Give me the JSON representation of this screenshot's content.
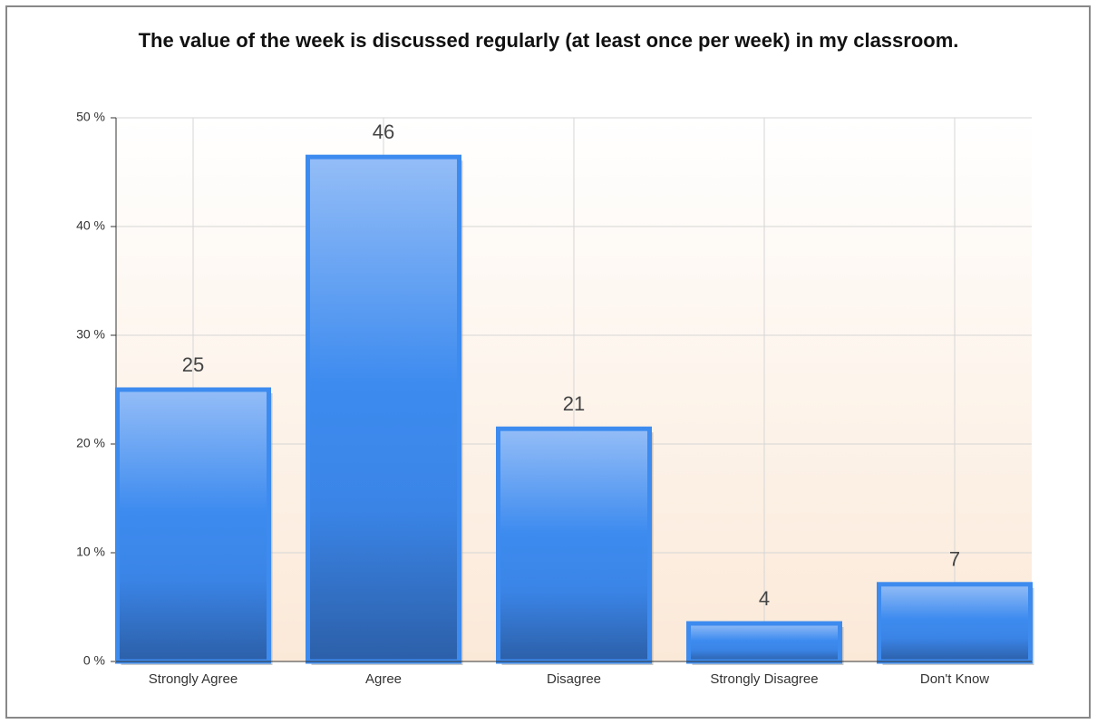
{
  "chart_data": {
    "type": "bar",
    "title": "The value of the week is discussed regularly (at least once per week) in my classroom.",
    "categories": [
      "Strongly Agree",
      "Agree",
      "Disagree",
      "Strongly Disagree",
      "Don't Know"
    ],
    "values": [
      25,
      46.4,
      21.4,
      3.5,
      7.1
    ],
    "value_labels": [
      "25",
      "46",
      "21",
      "4",
      "7"
    ],
    "color": "#3d8bef",
    "ylim": [
      0,
      50
    ],
    "yticks": [
      {
        "value": 0,
        "label": "0 %"
      },
      {
        "value": 10,
        "label": "10 %"
      },
      {
        "value": 20,
        "label": "20 %"
      },
      {
        "value": 30,
        "label": "30 %"
      },
      {
        "value": 40,
        "label": "40 %"
      },
      {
        "value": 50,
        "label": "50 %"
      }
    ],
    "grid": true
  }
}
